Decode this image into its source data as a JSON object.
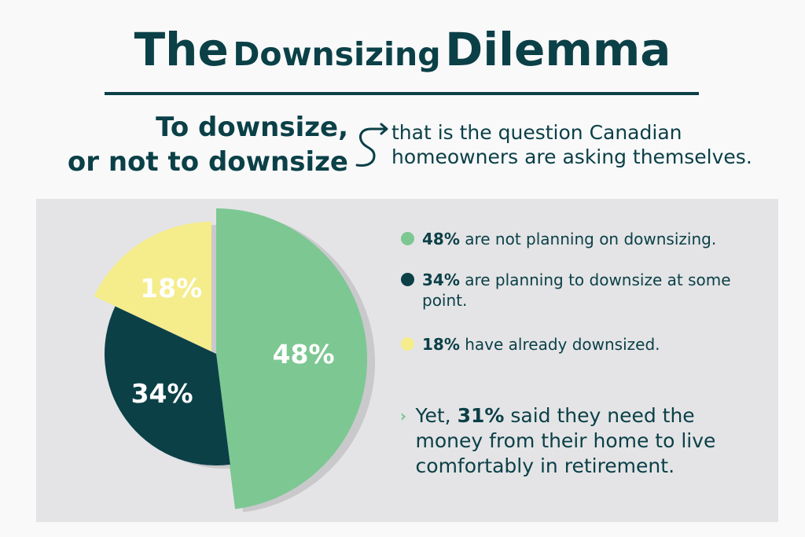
{
  "title": {
    "part1": "The",
    "part2": "Downsizing",
    "part3": "Dilemma"
  },
  "subtitle": {
    "bold_line1": "To downsize,",
    "bold_line2": "or not to downsize",
    "line1": "that is the question Canadian",
    "line2": "homeowners are asking themselves."
  },
  "chart_data": {
    "type": "pie",
    "slices": [
      {
        "label": "48%",
        "value": 48,
        "color": "#7dc793"
      },
      {
        "label": "34%",
        "value": 34,
        "color": "#0b4047"
      },
      {
        "label": "18%",
        "value": 18,
        "color": "#f5ec8c"
      }
    ]
  },
  "legend": [
    {
      "bold": "48%",
      "text": " are not planning on downsizing.",
      "color": "#7dc793"
    },
    {
      "bold": "34%",
      "text": " are planning to downsize at some point.",
      "color": "#0b4047"
    },
    {
      "bold": "18%",
      "text": " have already downsized.",
      "color": "#f5ec8c"
    }
  ],
  "note": {
    "pre": "Yet, ",
    "bold": "31%",
    "post": " said they need the money from their home to live comfortably in retirement.",
    "arrow_icon": "chevron-right-icon",
    "arrow_color": "#7dc793"
  },
  "colors": {
    "primary": "#0b4047",
    "panel": "#e4e4e6"
  }
}
